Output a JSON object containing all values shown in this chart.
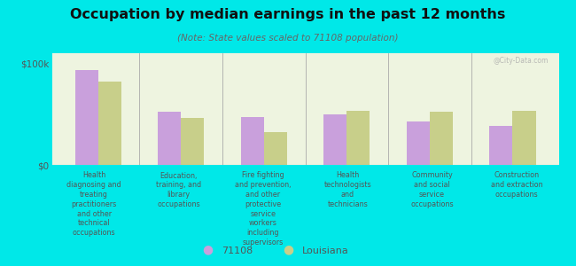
{
  "title": "Occupation by median earnings in the past 12 months",
  "subtitle": "(Note: State values scaled to 71108 population)",
  "background_color": "#00e8e8",
  "plot_bg_color": "#eef4e0",
  "categories": [
    "Health\ndiagnosing and\ntreating\npractitioners\nand other\ntechnical\noccupations",
    "Education,\ntraining, and\nlibrary\noccupations",
    "Fire fighting\nand prevention,\nand other\nprotective\nservice\nworkers\nincluding\nsupervisors",
    "Health\ntechnologists\nand\ntechnicians",
    "Community\nand social\nservice\noccupations",
    "Construction\nand extraction\noccupations"
  ],
  "values_71108": [
    93000,
    52000,
    47000,
    50000,
    43000,
    38000
  ],
  "values_louisiana": [
    82000,
    46000,
    32000,
    53000,
    52000,
    53000
  ],
  "color_71108": "#c9a0dc",
  "color_louisiana": "#c8cf8a",
  "ylim": [
    0,
    110000
  ],
  "yticks": [
    0,
    100000
  ],
  "ytick_labels": [
    "$0",
    "$100k"
  ],
  "legend_label_71108": "71108",
  "legend_label_louisiana": "Louisiana",
  "watermark": "@City-Data.com",
  "title_color": "#111111",
  "subtitle_color": "#666666",
  "label_color": "#555555"
}
